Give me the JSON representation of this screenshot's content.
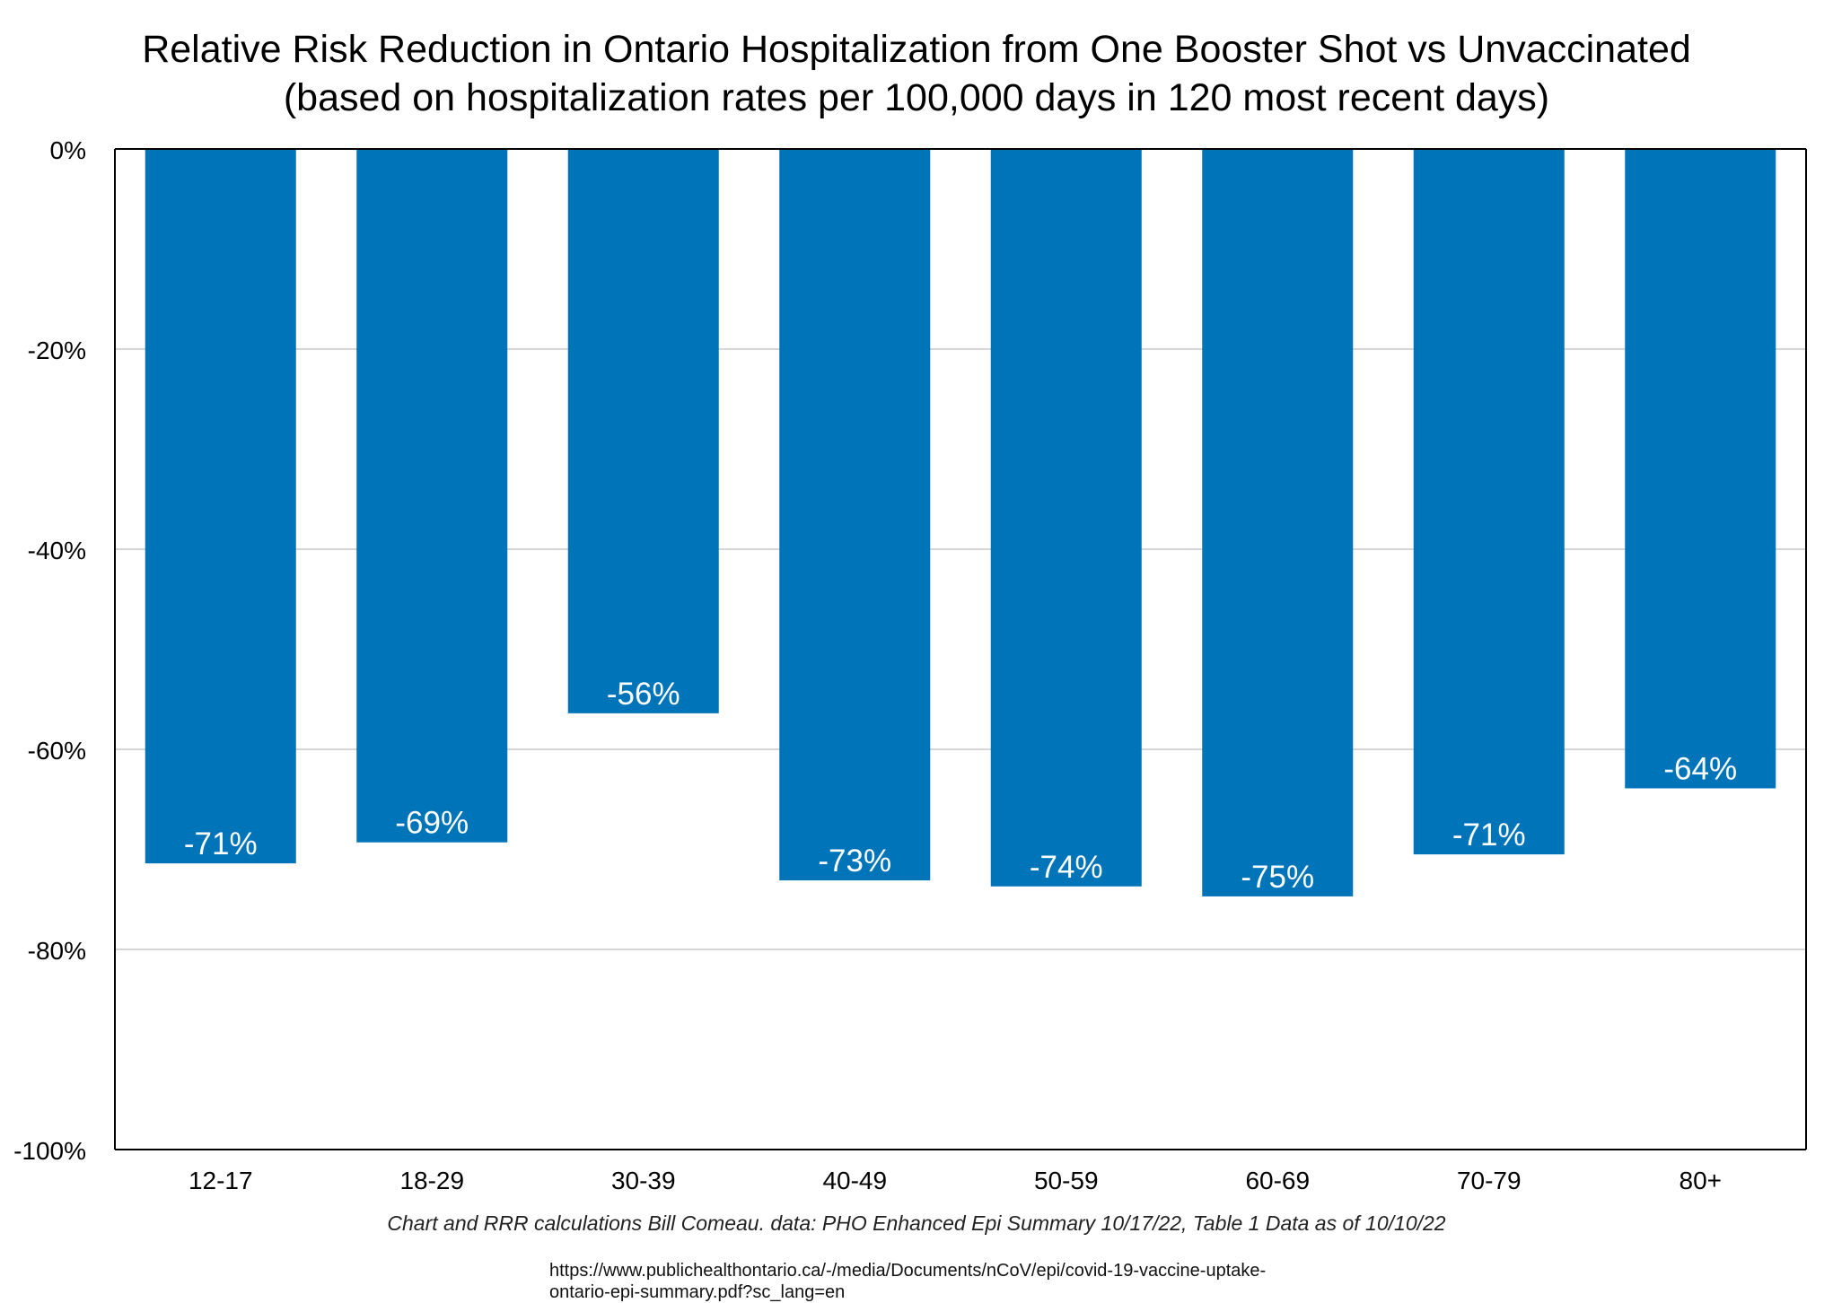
{
  "chart_data": {
    "type": "bar",
    "title": "Relative Risk Reduction in Ontario Hospitalization from One Booster Shot vs Unvaccinated",
    "subtitle": "(based on hospitalization rates per 100,000 days in 120 most recent days)",
    "xlabel": "",
    "ylabel": "",
    "categories": [
      "12-17",
      "18-29",
      "30-39",
      "40-49",
      "50-59",
      "60-69",
      "70-79",
      "80+"
    ],
    "values": [
      -71.4,
      -69.3,
      -56.4,
      -73.1,
      -73.7,
      -74.7,
      -70.5,
      -63.9
    ],
    "data_labels": [
      "-71%",
      "-69%",
      "-56%",
      "-73%",
      "-74%",
      "-75%",
      "-71%",
      "-64%"
    ],
    "ylim": [
      -100,
      0
    ],
    "yticks": [
      0,
      -20,
      -40,
      -60,
      -80,
      -100
    ],
    "ytick_labels": [
      "0%",
      "-20%",
      "-40%",
      "-60%",
      "-80%",
      "-100%"
    ],
    "grid": true,
    "legend": "none",
    "colors": {
      "bar": "#0074B9",
      "bar_label": "#FFFFFF",
      "gridline": "#C8C8C8",
      "axis": "#000000"
    }
  },
  "footer": {
    "source_note": "Chart and RRR calculations Bill Comeau. data: PHO Enhanced Epi Summary 10/17/22, Table 1 Data as of 10/10/22",
    "url_line1": "https://www.publichealthontario.ca/-/media/Documents/nCoV/epi/covid-19-vaccine-uptake-",
    "url_line2": "ontario-epi-summary.pdf?sc_lang=en"
  }
}
